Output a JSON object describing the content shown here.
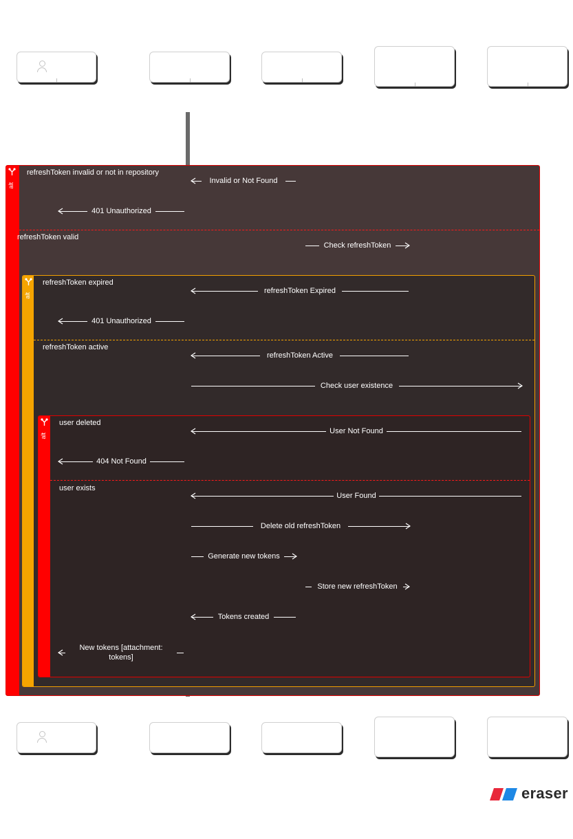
{
  "colors": {
    "alt_red": "#ff0000",
    "alt_orange": "#f5a400",
    "frame_outer_bg": "#463838",
    "frame_mid_bg": "#322a2a",
    "frame_inner_bg": "#2e2424",
    "text": "#ffffff",
    "logo_red": "#e8283b",
    "logo_blue": "#1e88e5"
  },
  "frames": {
    "outer": {
      "keyword": "alt",
      "icon": "branch-icon",
      "conditions": [
        "refreshToken invalid or not in repository",
        "refreshToken valid"
      ]
    },
    "mid": {
      "keyword": "alt",
      "icon": "branch-icon",
      "conditions": [
        "refreshToken expired",
        "refreshToken active"
      ]
    },
    "inner": {
      "keyword": "alt",
      "icon": "branch-icon",
      "conditions": [
        "user deleted",
        "user exists"
      ]
    }
  },
  "messages": [
    "Invalid or Not Found",
    "401 Unauthorized",
    "Check refreshToken",
    "refreshToken Expired",
    "401 Unauthorized",
    "refreshToken Active",
    "Check user existence",
    "User Not Found",
    "404 Not Found",
    "User Found",
    "Delete old refreshToken",
    "Generate new tokens",
    "Store new refreshToken",
    "Tokens created",
    "New tokens [attachment: tokens]"
  ],
  "logo": {
    "text": "eraser"
  }
}
